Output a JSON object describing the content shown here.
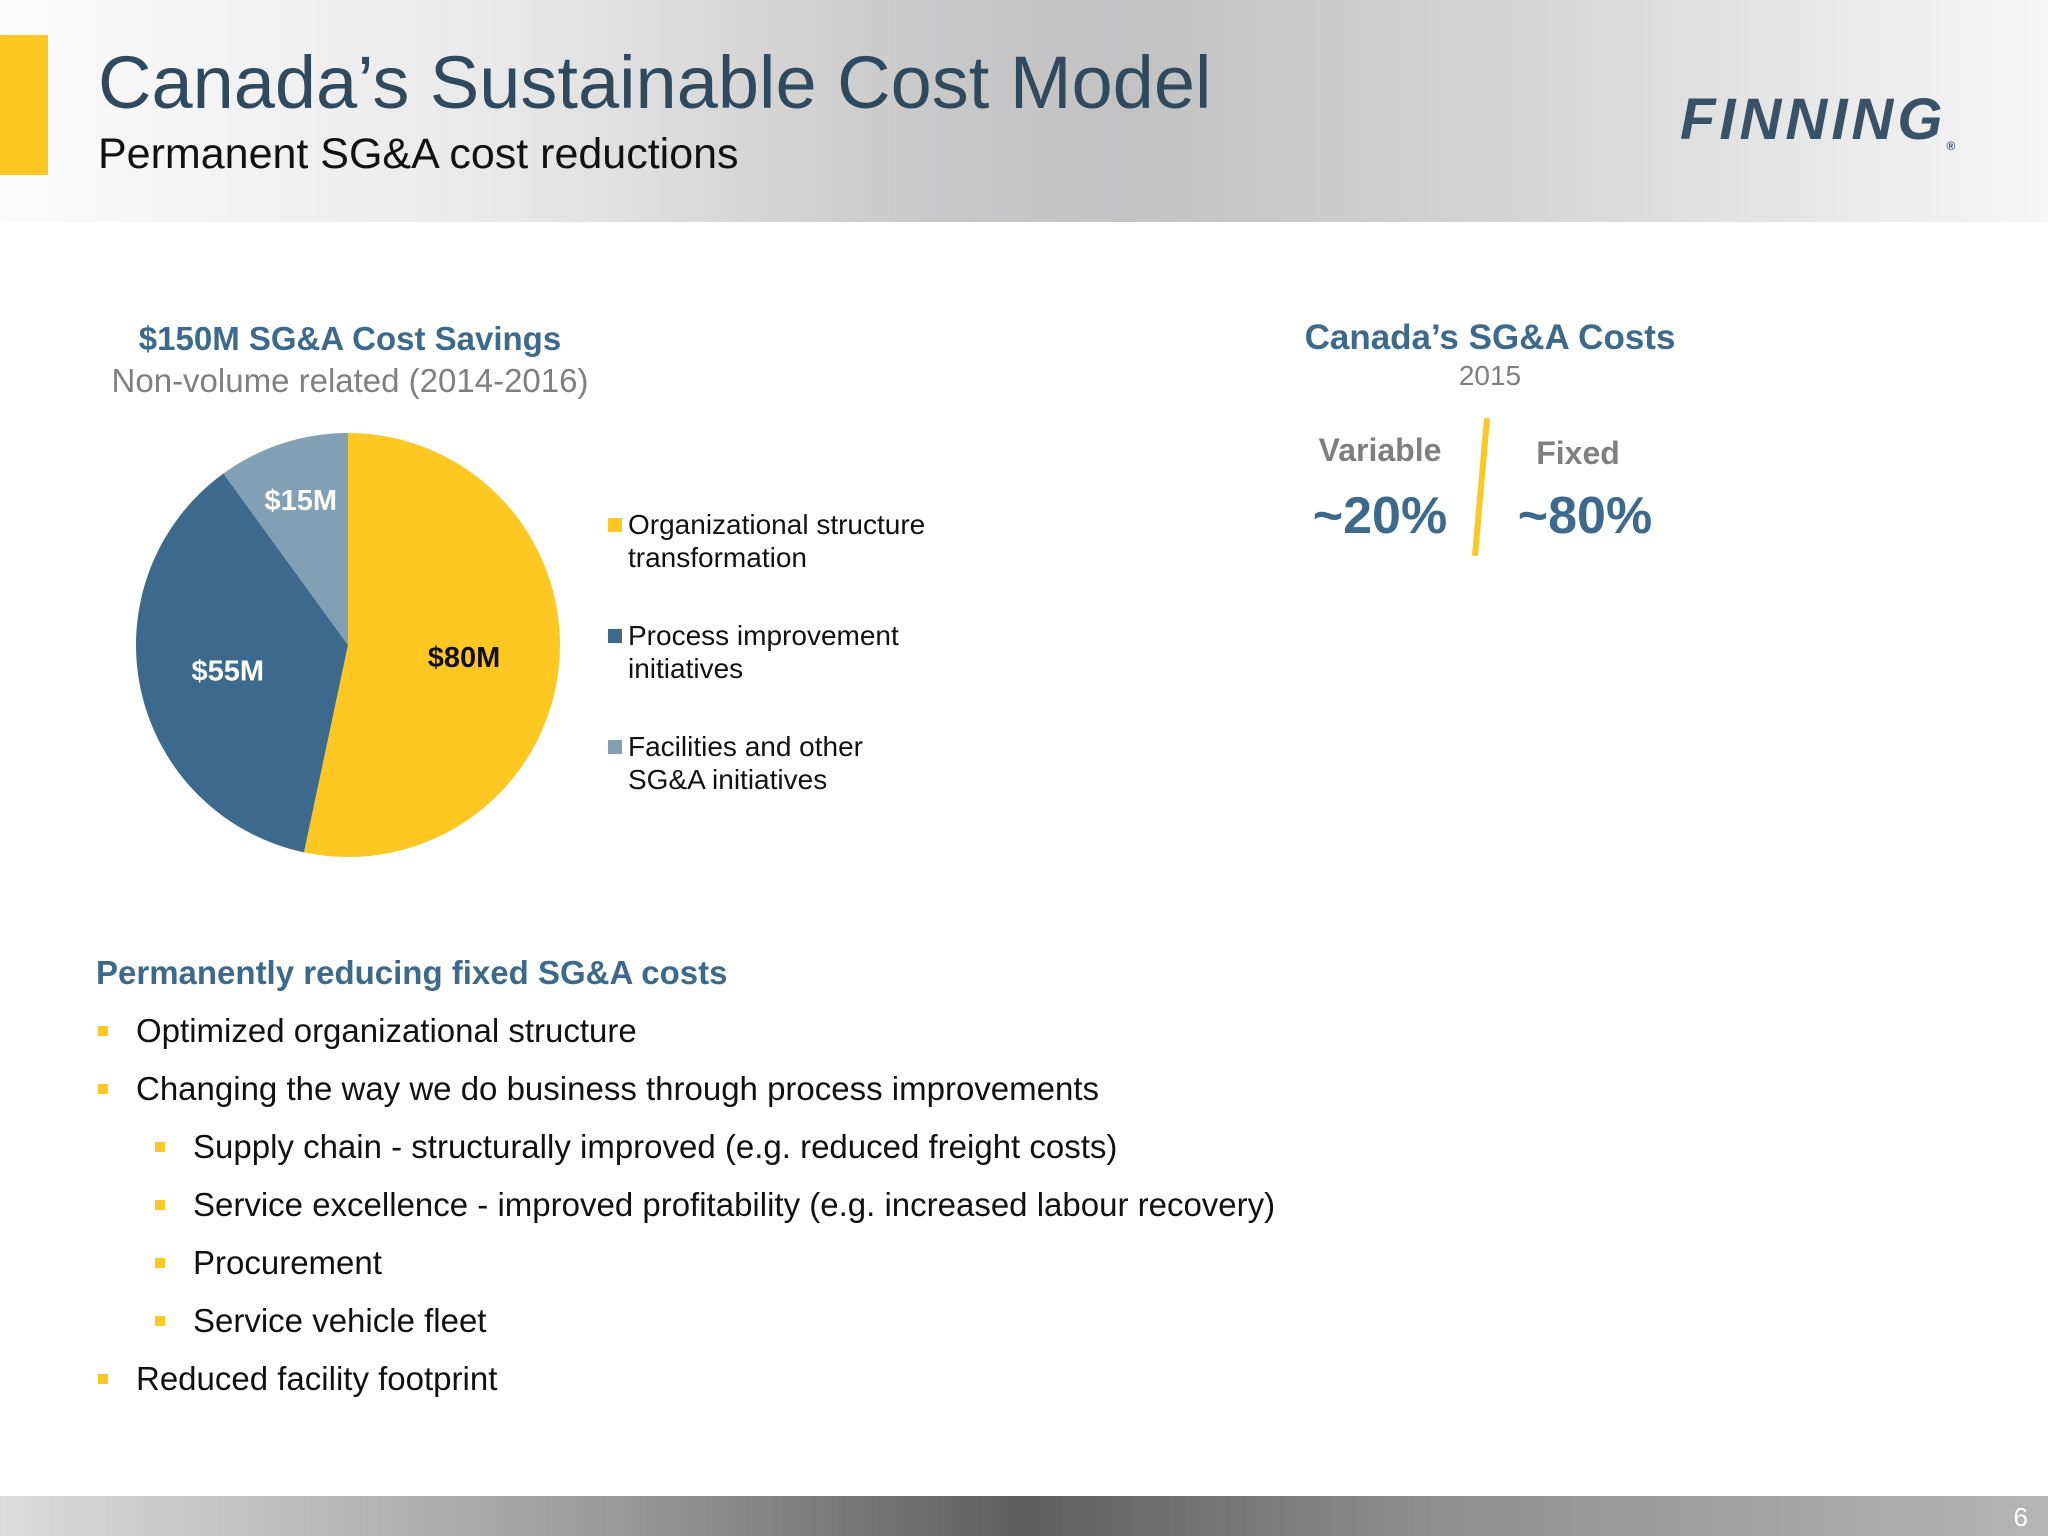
{
  "header": {
    "title": "Canada’s Sustainable Cost Model",
    "subtitle": "Permanent SG&A cost reductions",
    "logo_text": "FINNING",
    "logo_mark": "®"
  },
  "chart_data": {
    "type": "pie",
    "title": "$150M SG&A Cost Savings",
    "subtitle": "Non-volume related (2014-2016)",
    "slices": [
      {
        "name": "Organizational structure transformation",
        "value": 80,
        "label": "$80M",
        "color": "#FFC722"
      },
      {
        "name": "Process improvement initiatives",
        "value": 55,
        "label": "$55M",
        "color": "#3D6A8C"
      },
      {
        "name": "Facilities and other SG&A initiatives",
        "value": 15,
        "label": "$15M",
        "color": "#819FB5"
      }
    ],
    "legend": {
      "placement": "right",
      "items": [
        {
          "line1": "Organizational structure",
          "line2": "transformation",
          "color": "#FFC722"
        },
        {
          "line1": "Process improvement",
          "line2": "initiatives",
          "color": "#3D6A8C"
        },
        {
          "line1": "Facilities and other",
          "line2": "SG&A initiatives",
          "color": "#819FB5"
        }
      ]
    }
  },
  "sga_costs": {
    "title": "Canada’s SG&A Costs",
    "year": "2015",
    "variable_label": "Variable",
    "variable_value": "~20%",
    "fixed_label": "Fixed",
    "fixed_value": "~80%",
    "accent_color": "#FFC722"
  },
  "bullets": {
    "title": "Permanently reducing fixed SG&A costs",
    "items": [
      "Optimized organizational structure",
      "Changing the way we do business through process improvements",
      "Supply chain - structurally improved (e.g. reduced freight costs)",
      "Service excellence - improved profitability (e.g. increased labour recovery)",
      "Procurement",
      "Service vehicle fleet",
      "Reduced facility footprint"
    ]
  },
  "footer": {
    "page_number": "6"
  }
}
